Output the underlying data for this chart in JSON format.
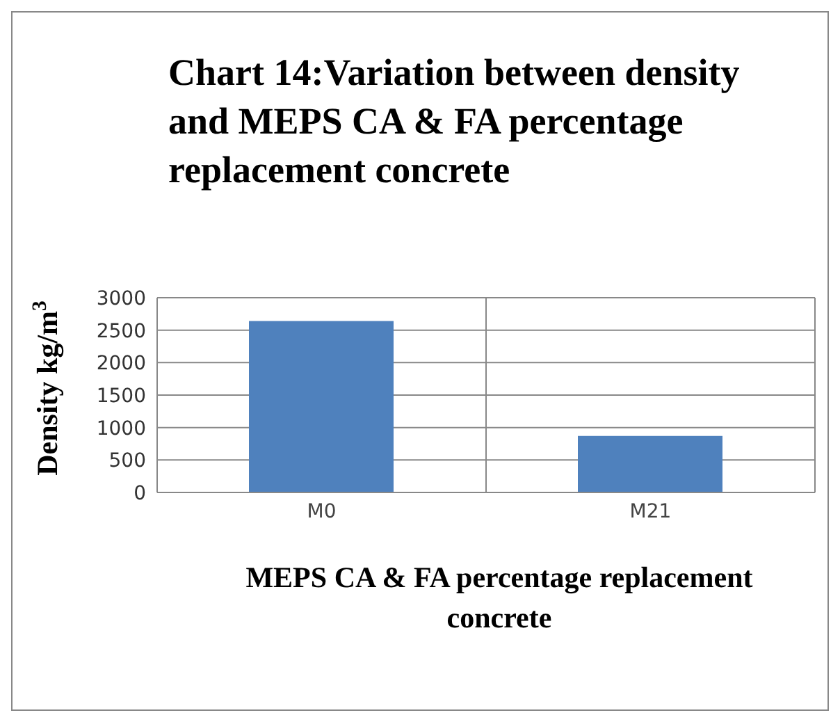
{
  "chart_data": {
    "type": "bar",
    "title": "Chart 14:Variation between density and MEPS CA & FA percentage replacement concrete",
    "xlabel": "MEPS CA & FA percentage replacement concrete",
    "ylabel": "Density kg/m$^{3}$",
    "categories": [
      "M0",
      "M21"
    ],
    "values": [
      2640,
      870
    ],
    "color": "#4f81bd",
    "ylim": [
      0,
      3000
    ],
    "yticks": [
      0,
      500,
      1000,
      1500,
      2000,
      2500,
      3000
    ],
    "grid": true
  }
}
